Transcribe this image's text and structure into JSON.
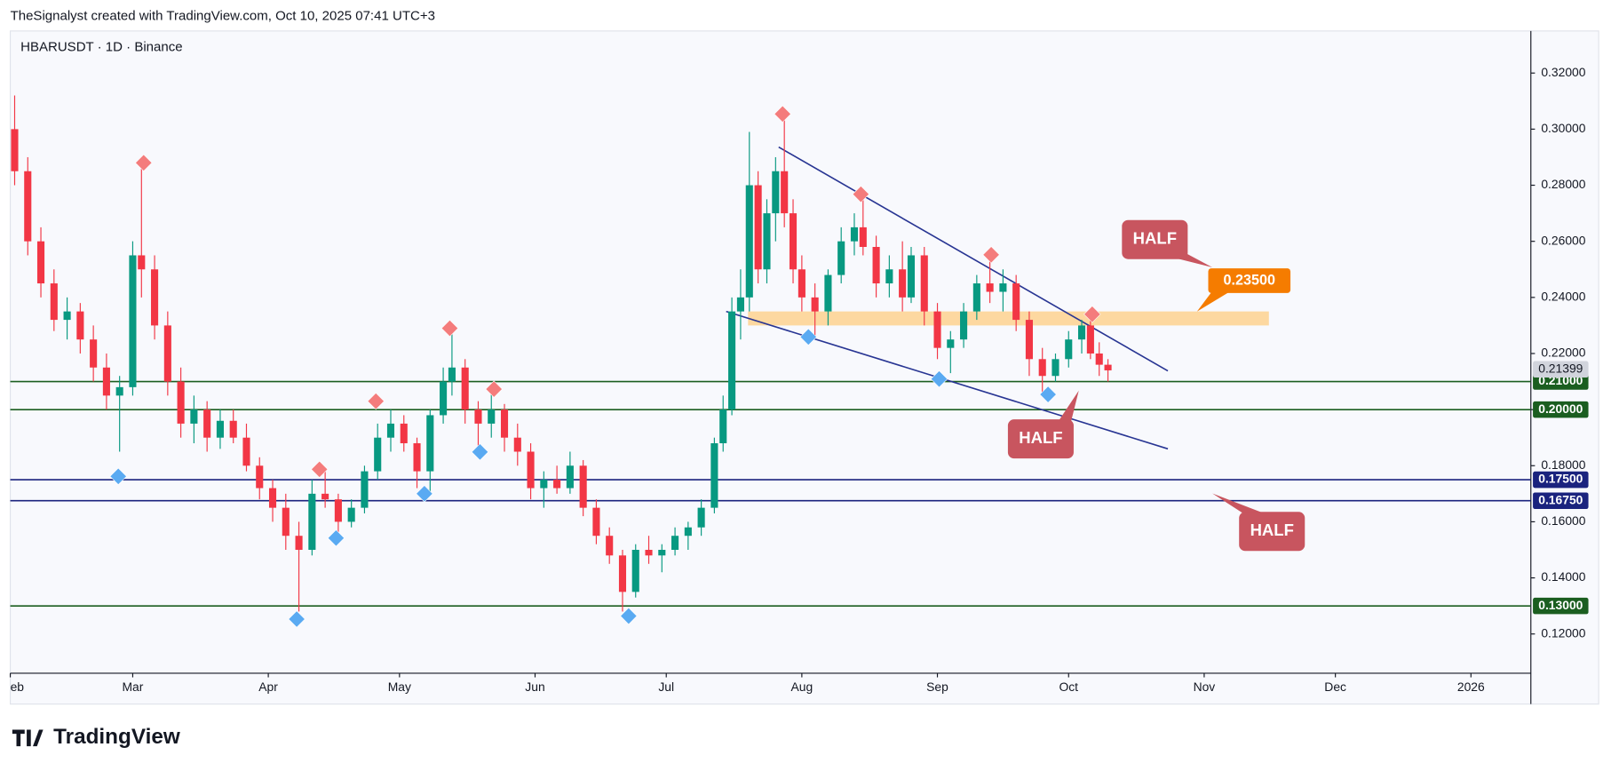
{
  "chart_data": {
    "type": "candlestick",
    "header": "TheSignalyst created with TradingView.com, Oct 10, 2025 07:41 UTC+3",
    "title": "HBARUSDT · 1D · Binance",
    "brand": "TradingView",
    "up_color": "#089981",
    "down_color": "#f23645",
    "xlim": [
      0,
      347.7
    ],
    "xticks": [
      {
        "value": 0,
        "label": "eb"
      },
      {
        "value": 28,
        "label": "Mar"
      },
      {
        "value": 59,
        "label": "Apr"
      },
      {
        "value": 89,
        "label": "May"
      },
      {
        "value": 120,
        "label": "Jun"
      },
      {
        "value": 150,
        "label": "Jul"
      },
      {
        "value": 181,
        "label": "Aug"
      },
      {
        "value": 212,
        "label": "Sep"
      },
      {
        "value": 242,
        "label": "Oct"
      },
      {
        "value": 273,
        "label": "Nov"
      },
      {
        "value": 303,
        "label": "Dec"
      },
      {
        "value": 334,
        "label": "2026"
      }
    ],
    "ylim": [
      0.106,
      0.335
    ],
    "yticks": [
      {
        "value": 0.12,
        "label": "0.12000"
      },
      {
        "value": 0.14,
        "label": "0.14000"
      },
      {
        "value": 0.16,
        "label": "0.16000"
      },
      {
        "value": 0.18,
        "label": "0.18000"
      },
      {
        "value": 0.2,
        "label": "0.20000"
      },
      {
        "value": 0.22,
        "label": "0.22000"
      },
      {
        "value": 0.24,
        "label": "0.24000"
      },
      {
        "value": 0.26,
        "label": "0.26000"
      },
      {
        "value": 0.28,
        "label": "0.28000"
      },
      {
        "value": 0.3,
        "label": "0.30000"
      },
      {
        "value": 0.32,
        "label": "0.32000"
      }
    ],
    "candles": [
      {
        "x": 1,
        "open": 0.3,
        "high": 0.312,
        "low": 0.28,
        "close": 0.285
      },
      {
        "x": 4,
        "open": 0.285,
        "high": 0.29,
        "low": 0.255,
        "close": 0.26
      },
      {
        "x": 7,
        "open": 0.26,
        "high": 0.265,
        "low": 0.24,
        "close": 0.245
      },
      {
        "x": 10,
        "open": 0.245,
        "high": 0.25,
        "low": 0.228,
        "close": 0.232
      },
      {
        "x": 13,
        "open": 0.232,
        "high": 0.24,
        "low": 0.225,
        "close": 0.235
      },
      {
        "x": 16,
        "open": 0.235,
        "high": 0.238,
        "low": 0.22,
        "close": 0.225
      },
      {
        "x": 19,
        "open": 0.225,
        "high": 0.23,
        "low": 0.21,
        "close": 0.215
      },
      {
        "x": 22,
        "open": 0.215,
        "high": 0.22,
        "low": 0.2,
        "close": 0.205
      },
      {
        "x": 25,
        "open": 0.205,
        "high": 0.212,
        "low": 0.185,
        "close": 0.208
      },
      {
        "x": 28,
        "open": 0.208,
        "high": 0.26,
        "low": 0.205,
        "close": 0.255
      },
      {
        "x": 30,
        "open": 0.255,
        "high": 0.288,
        "low": 0.24,
        "close": 0.25
      },
      {
        "x": 33,
        "open": 0.25,
        "high": 0.255,
        "low": 0.225,
        "close": 0.23
      },
      {
        "x": 36,
        "open": 0.23,
        "high": 0.235,
        "low": 0.205,
        "close": 0.21
      },
      {
        "x": 39,
        "open": 0.21,
        "high": 0.215,
        "low": 0.19,
        "close": 0.195
      },
      {
        "x": 42,
        "open": 0.195,
        "high": 0.205,
        "low": 0.188,
        "close": 0.2
      },
      {
        "x": 45,
        "open": 0.2,
        "high": 0.203,
        "low": 0.185,
        "close": 0.19
      },
      {
        "x": 48,
        "open": 0.19,
        "high": 0.2,
        "low": 0.186,
        "close": 0.196
      },
      {
        "x": 51,
        "open": 0.196,
        "high": 0.2,
        "low": 0.188,
        "close": 0.19
      },
      {
        "x": 54,
        "open": 0.19,
        "high": 0.195,
        "low": 0.178,
        "close": 0.18
      },
      {
        "x": 57,
        "open": 0.18,
        "high": 0.183,
        "low": 0.168,
        "close": 0.172
      },
      {
        "x": 60,
        "open": 0.172,
        "high": 0.175,
        "low": 0.16,
        "close": 0.165
      },
      {
        "x": 63,
        "open": 0.165,
        "high": 0.17,
        "low": 0.15,
        "close": 0.155
      },
      {
        "x": 66,
        "open": 0.155,
        "high": 0.16,
        "low": 0.128,
        "close": 0.15
      },
      {
        "x": 69,
        "open": 0.15,
        "high": 0.175,
        "low": 0.148,
        "close": 0.17
      },
      {
        "x": 72,
        "open": 0.17,
        "high": 0.178,
        "low": 0.165,
        "close": 0.168
      },
      {
        "x": 75,
        "open": 0.168,
        "high": 0.17,
        "low": 0.155,
        "close": 0.16
      },
      {
        "x": 78,
        "open": 0.16,
        "high": 0.168,
        "low": 0.158,
        "close": 0.165
      },
      {
        "x": 81,
        "open": 0.165,
        "high": 0.18,
        "low": 0.163,
        "close": 0.178
      },
      {
        "x": 84,
        "open": 0.178,
        "high": 0.195,
        "low": 0.175,
        "close": 0.19
      },
      {
        "x": 87,
        "open": 0.19,
        "high": 0.2,
        "low": 0.185,
        "close": 0.195
      },
      {
        "x": 90,
        "open": 0.195,
        "high": 0.198,
        "low": 0.185,
        "close": 0.188
      },
      {
        "x": 93,
        "open": 0.188,
        "high": 0.19,
        "low": 0.172,
        "close": 0.178
      },
      {
        "x": 96,
        "open": 0.178,
        "high": 0.2,
        "low": 0.17,
        "close": 0.198
      },
      {
        "x": 99,
        "open": 0.198,
        "high": 0.215,
        "low": 0.195,
        "close": 0.21
      },
      {
        "x": 101,
        "open": 0.21,
        "high": 0.228,
        "low": 0.205,
        "close": 0.215
      },
      {
        "x": 104,
        "open": 0.215,
        "high": 0.218,
        "low": 0.195,
        "close": 0.2
      },
      {
        "x": 107,
        "open": 0.2,
        "high": 0.203,
        "low": 0.186,
        "close": 0.195
      },
      {
        "x": 110,
        "open": 0.195,
        "high": 0.208,
        "low": 0.19,
        "close": 0.2
      },
      {
        "x": 113,
        "open": 0.2,
        "high": 0.202,
        "low": 0.185,
        "close": 0.19
      },
      {
        "x": 116,
        "open": 0.19,
        "high": 0.195,
        "low": 0.18,
        "close": 0.185
      },
      {
        "x": 119,
        "open": 0.185,
        "high": 0.188,
        "low": 0.168,
        "close": 0.172
      },
      {
        "x": 122,
        "open": 0.172,
        "high": 0.178,
        "low": 0.165,
        "close": 0.175
      },
      {
        "x": 125,
        "open": 0.175,
        "high": 0.18,
        "low": 0.17,
        "close": 0.172
      },
      {
        "x": 128,
        "open": 0.172,
        "high": 0.185,
        "low": 0.17,
        "close": 0.18
      },
      {
        "x": 131,
        "open": 0.18,
        "high": 0.182,
        "low": 0.162,
        "close": 0.165
      },
      {
        "x": 134,
        "open": 0.165,
        "high": 0.168,
        "low": 0.152,
        "close": 0.155
      },
      {
        "x": 137,
        "open": 0.155,
        "high": 0.158,
        "low": 0.145,
        "close": 0.148
      },
      {
        "x": 140,
        "open": 0.148,
        "high": 0.15,
        "low": 0.128,
        "close": 0.135
      },
      {
        "x": 143,
        "open": 0.135,
        "high": 0.152,
        "low": 0.133,
        "close": 0.15
      },
      {
        "x": 146,
        "open": 0.15,
        "high": 0.155,
        "low": 0.145,
        "close": 0.148
      },
      {
        "x": 149,
        "open": 0.148,
        "high": 0.152,
        "low": 0.142,
        "close": 0.15
      },
      {
        "x": 152,
        "open": 0.15,
        "high": 0.158,
        "low": 0.148,
        "close": 0.155
      },
      {
        "x": 155,
        "open": 0.155,
        "high": 0.16,
        "low": 0.15,
        "close": 0.158
      },
      {
        "x": 158,
        "open": 0.158,
        "high": 0.168,
        "low": 0.155,
        "close": 0.165
      },
      {
        "x": 161,
        "open": 0.165,
        "high": 0.19,
        "low": 0.163,
        "close": 0.188
      },
      {
        "x": 163,
        "open": 0.188,
        "high": 0.205,
        "low": 0.185,
        "close": 0.2
      },
      {
        "x": 165,
        "open": 0.2,
        "high": 0.24,
        "low": 0.198,
        "close": 0.235
      },
      {
        "x": 167,
        "open": 0.235,
        "high": 0.25,
        "low": 0.225,
        "close": 0.24
      },
      {
        "x": 169,
        "open": 0.24,
        "high": 0.299,
        "low": 0.235,
        "close": 0.28
      },
      {
        "x": 171,
        "open": 0.28,
        "high": 0.285,
        "low": 0.245,
        "close": 0.25
      },
      {
        "x": 173,
        "open": 0.25,
        "high": 0.275,
        "low": 0.245,
        "close": 0.27
      },
      {
        "x": 175,
        "open": 0.27,
        "high": 0.29,
        "low": 0.26,
        "close": 0.285
      },
      {
        "x": 177,
        "open": 0.285,
        "high": 0.305,
        "low": 0.265,
        "close": 0.27
      },
      {
        "x": 179,
        "open": 0.27,
        "high": 0.275,
        "low": 0.245,
        "close": 0.25
      },
      {
        "x": 181,
        "open": 0.25,
        "high": 0.255,
        "low": 0.235,
        "close": 0.24
      },
      {
        "x": 184,
        "open": 0.24,
        "high": 0.245,
        "low": 0.226,
        "close": 0.235
      },
      {
        "x": 187,
        "open": 0.235,
        "high": 0.25,
        "low": 0.23,
        "close": 0.248
      },
      {
        "x": 190,
        "open": 0.248,
        "high": 0.265,
        "low": 0.245,
        "close": 0.26
      },
      {
        "x": 193,
        "open": 0.26,
        "high": 0.27,
        "low": 0.255,
        "close": 0.265
      },
      {
        "x": 195,
        "open": 0.265,
        "high": 0.276,
        "low": 0.255,
        "close": 0.258
      },
      {
        "x": 198,
        "open": 0.258,
        "high": 0.262,
        "low": 0.24,
        "close": 0.245
      },
      {
        "x": 201,
        "open": 0.245,
        "high": 0.255,
        "low": 0.24,
        "close": 0.25
      },
      {
        "x": 204,
        "open": 0.25,
        "high": 0.26,
        "low": 0.235,
        "close": 0.24
      },
      {
        "x": 206,
        "open": 0.24,
        "high": 0.258,
        "low": 0.238,
        "close": 0.255
      },
      {
        "x": 209,
        "open": 0.255,
        "high": 0.258,
        "low": 0.23,
        "close": 0.235
      },
      {
        "x": 212,
        "open": 0.235,
        "high": 0.238,
        "low": 0.218,
        "close": 0.222
      },
      {
        "x": 215,
        "open": 0.222,
        "high": 0.228,
        "low": 0.213,
        "close": 0.225
      },
      {
        "x": 218,
        "open": 0.225,
        "high": 0.238,
        "low": 0.222,
        "close": 0.235
      },
      {
        "x": 221,
        "open": 0.235,
        "high": 0.248,
        "low": 0.232,
        "close": 0.245
      },
      {
        "x": 224,
        "open": 0.245,
        "high": 0.254,
        "low": 0.238,
        "close": 0.242
      },
      {
        "x": 227,
        "open": 0.242,
        "high": 0.25,
        "low": 0.235,
        "close": 0.245
      },
      {
        "x": 230,
        "open": 0.245,
        "high": 0.248,
        "low": 0.228,
        "close": 0.232
      },
      {
        "x": 233,
        "open": 0.232,
        "high": 0.235,
        "low": 0.212,
        "close": 0.218
      },
      {
        "x": 236,
        "open": 0.218,
        "high": 0.222,
        "low": 0.206,
        "close": 0.212
      },
      {
        "x": 239,
        "open": 0.212,
        "high": 0.22,
        "low": 0.21,
        "close": 0.218
      },
      {
        "x": 242,
        "open": 0.218,
        "high": 0.228,
        "low": 0.215,
        "close": 0.225
      },
      {
        "x": 245,
        "open": 0.225,
        "high": 0.232,
        "low": 0.22,
        "close": 0.23
      },
      {
        "x": 247,
        "open": 0.23,
        "high": 0.234,
        "low": 0.218,
        "close": 0.22
      },
      {
        "x": 249,
        "open": 0.22,
        "high": 0.224,
        "low": 0.212,
        "close": 0.216
      },
      {
        "x": 251,
        "open": 0.216,
        "high": 0.218,
        "low": 0.21,
        "close": 0.21399
      }
    ],
    "levels": [
      {
        "value": 0.21,
        "label": "0.21000",
        "color": "#1b5e20"
      },
      {
        "value": 0.2,
        "label": "0.20000",
        "color": "#1b5e20"
      },
      {
        "value": 0.175,
        "label": "0.17500",
        "color": "#1a237e"
      },
      {
        "value": 0.1675,
        "label": "0.16750",
        "color": "#1a237e"
      },
      {
        "value": 0.13,
        "label": "0.13000",
        "color": "#1b5e20"
      }
    ],
    "trendlines": [
      {
        "x": [
          175.7,
          264.7
        ],
        "y": [
          0.2936,
          0.2138
        ],
        "color": "#283593"
      },
      {
        "x": [
          163.7,
          264.7
        ],
        "y": [
          0.235,
          0.186
        ],
        "color": "#283593"
      }
    ],
    "zone": {
      "x": [
        168.7,
        287.8
      ],
      "y": [
        0.23,
        0.235
      ],
      "color": "#ffcc80"
    },
    "markers": {
      "highs": {
        "color": "#f47c7c",
        "x": [
          30.5,
          83.6,
          100.5,
          110.6,
          70.7,
          176.6,
          194.5,
          224.3,
          247.4
        ],
        "y": [
          0.288,
          0.203,
          0.229,
          0.2073,
          0.1787,
          0.3054,
          0.2768,
          0.2552,
          0.234
        ]
      },
      "lows": {
        "color": "#5aaaf2",
        "x": [
          24.7,
          65.5,
          74.5,
          94.7,
          107.4,
          141.4,
          182.5,
          212.4,
          237.3
        ],
        "y": [
          0.1762,
          0.1253,
          0.1542,
          0.17,
          0.1849,
          0.1264,
          0.2259,
          0.2109,
          0.2054
        ]
      }
    },
    "callouts": [
      "HALF",
      "HALF",
      "HALF"
    ],
    "target": {
      "value": 0.235,
      "label": "0.23500"
    }
  }
}
